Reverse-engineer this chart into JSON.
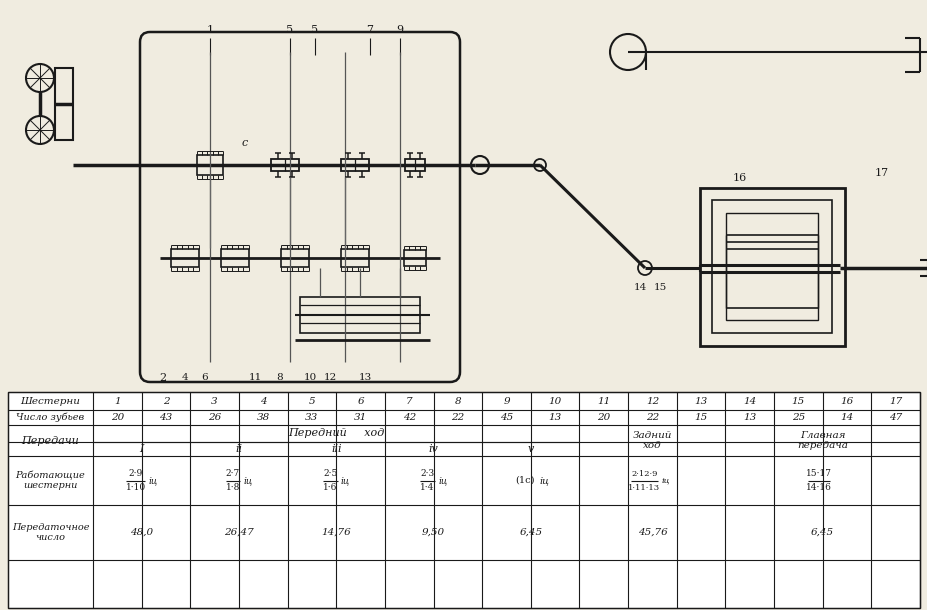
{
  "bg_color": "#f0ece0",
  "dark": "#1a1a1a",
  "table": {
    "col_headers": [
      "Шестерни",
      "1",
      "2",
      "3",
      "4",
      "5",
      "6",
      "7",
      "8",
      "9",
      "10",
      "11",
      "12",
      "13",
      "14",
      "15",
      "16",
      "17"
    ],
    "row2_label": "Число зубьев",
    "row2_vals": [
      "20",
      "43",
      "26",
      "38",
      "33",
      "31",
      "42",
      "22",
      "45",
      "13",
      "20",
      "22",
      "15",
      "13",
      "25",
      "14",
      "47"
    ],
    "peredachi_label": "Передачи",
    "peredний_hod": "Передний     ход",
    "zadний_hod": "Задний\nход",
    "glavnaya": "Главная\nпередача",
    "rabotayuschie_label": "Работающие\nшестерни",
    "peredatochnoe_label": "Передаточное\nчисло",
    "peredatochnoe_values": [
      "48,0",
      "26,47",
      "14,76",
      "9,50",
      "6,45",
      "45,76",
      "6,45"
    ]
  }
}
